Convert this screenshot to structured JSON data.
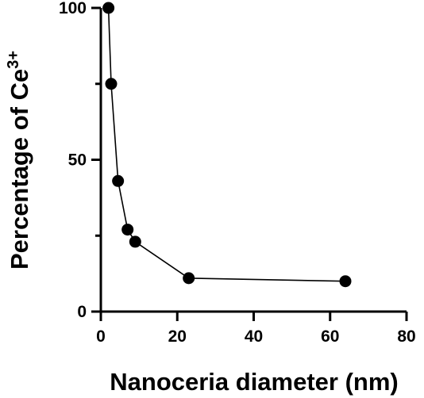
{
  "chart_data": {
    "type": "line",
    "title": "",
    "xlabel": "Nanoceria diameter (nm)",
    "ylabel": "Percentage of Ce",
    "ylabel_superscript": "3+",
    "xlim": [
      0,
      80
    ],
    "ylim": [
      0,
      100
    ],
    "x_ticks": [
      0,
      20,
      40,
      60,
      80
    ],
    "y_major_ticks": [
      0,
      50,
      100
    ],
    "y_minor_ticks": [
      25,
      75
    ],
    "grid": false,
    "legend": "none",
    "markers": true,
    "color": "#000000",
    "series": [
      {
        "x": [
          2,
          2.7,
          4.5,
          7,
          9,
          23,
          64
        ],
        "y": [
          100,
          75,
          43,
          27,
          23,
          11,
          10
        ]
      }
    ]
  }
}
